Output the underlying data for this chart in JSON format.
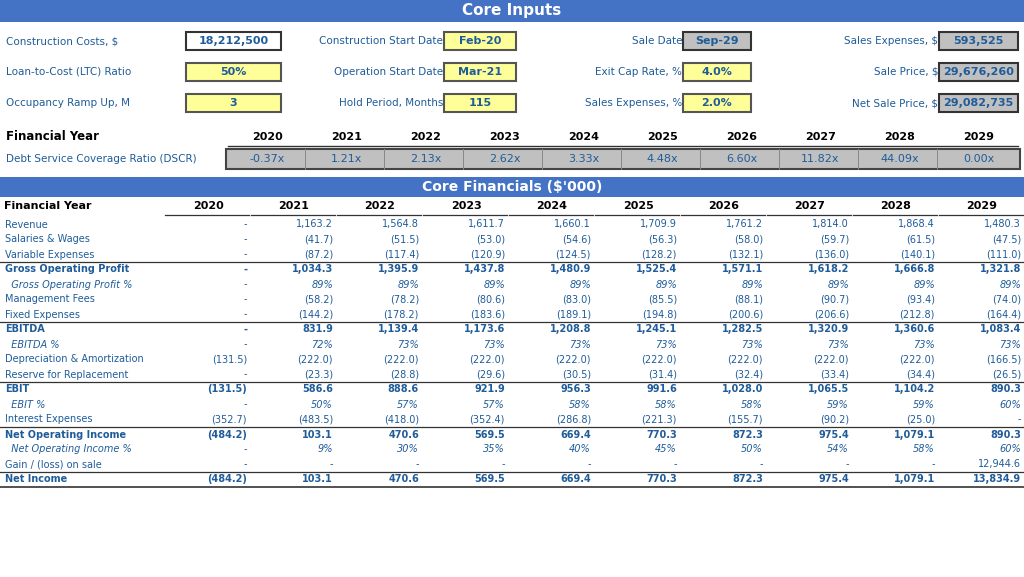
{
  "title_inputs": "Core Inputs",
  "title_financials": "Core Financials ($’000)",
  "header_bg": "#4472C4",
  "header_text": "#FFFFFF",
  "blue_text": "#1F5C99",
  "black_text": "#000000",
  "body_bg": "#FFFFFF",
  "light_gray_bg": "#C0C0C0",
  "yellow_bg": "#FFFF99",
  "gray_border": "#555555",
  "fin_years": [
    "2020",
    "2021",
    "2022",
    "2023",
    "2024",
    "2025",
    "2026",
    "2027",
    "2028",
    "2029"
  ],
  "dscr": [
    "-0.37x",
    "1.21x",
    "2.13x",
    "2.62x",
    "3.33x",
    "4.48x",
    "6.60x",
    "11.82x",
    "44.09x",
    "0.00x"
  ],
  "input_rows": [
    [
      {
        "label": "Construction Costs, $",
        "value": "18,212,500",
        "val_bg": "#FFFFFF",
        "val_border": "#333333"
      },
      {
        "label": "Construction Start Date",
        "value": "Feb-20",
        "val_bg": "#FFFF99",
        "val_border": "#555555"
      },
      {
        "label": "Sale Date",
        "value": "Sep-29",
        "val_bg": "#C0C0C0",
        "val_border": "#333333"
      },
      {
        "label": "Sales Expenses, $",
        "value": "593,525",
        "val_bg": "#C0C0C0",
        "val_border": "#333333"
      }
    ],
    [
      {
        "label": "Loan-to-Cost (LTC) Ratio",
        "value": "50%",
        "val_bg": "#FFFF99",
        "val_border": "#555555"
      },
      {
        "label": "Operation Start Date",
        "value": "Mar-21",
        "val_bg": "#FFFF99",
        "val_border": "#555555"
      },
      {
        "label": "Exit Cap Rate, %",
        "value": "4.0%",
        "val_bg": "#FFFF99",
        "val_border": "#555555"
      },
      {
        "label": "Sale Price, $",
        "value": "29,676,260",
        "val_bg": "#C0C0C0",
        "val_border": "#333333"
      }
    ],
    [
      {
        "label": "Occupancy Ramp Up, M",
        "value": "3",
        "val_bg": "#FFFF99",
        "val_border": "#555555"
      },
      {
        "label": "Hold Period, Months",
        "value": "115",
        "val_bg": "#FFFF99",
        "val_border": "#555555"
      },
      {
        "label": "Sales Expenses, %",
        "value": "2.0%",
        "val_bg": "#FFFF99",
        "val_border": "#555555"
      },
      {
        "label": "Net Sale Price, $",
        "value": "29,082,735",
        "val_bg": "#C0C0C0",
        "val_border": "#333333"
      }
    ]
  ],
  "fin_rows": [
    {
      "label": "Revenue",
      "bold": false,
      "italic": false,
      "topline": false,
      "values": [
        "-",
        "1,163.2",
        "1,564.8",
        "1,611.7",
        "1,660.1",
        "1,709.9",
        "1,761.2",
        "1,814.0",
        "1,868.4",
        "1,480.3"
      ]
    },
    {
      "label": "Salaries & Wages",
      "bold": false,
      "italic": false,
      "topline": false,
      "values": [
        "-",
        "(41.7)",
        "(51.5)",
        "(53.0)",
        "(54.6)",
        "(56.3)",
        "(58.0)",
        "(59.7)",
        "(61.5)",
        "(47.5)"
      ]
    },
    {
      "label": "Variable Expenses",
      "bold": false,
      "italic": false,
      "topline": false,
      "values": [
        "-",
        "(87.2)",
        "(117.4)",
        "(120.9)",
        "(124.5)",
        "(128.2)",
        "(132.1)",
        "(136.0)",
        "(140.1)",
        "(111.0)"
      ]
    },
    {
      "label": "Gross Operating Profit",
      "bold": true,
      "italic": false,
      "topline": true,
      "values": [
        "-",
        "1,034.3",
        "1,395.9",
        "1,437.8",
        "1,480.9",
        "1,525.4",
        "1,571.1",
        "1,618.2",
        "1,666.8",
        "1,321.8"
      ]
    },
    {
      "label": "  Gross Operating Profit %",
      "bold": false,
      "italic": true,
      "topline": false,
      "values": [
        "-",
        "89%",
        "89%",
        "89%",
        "89%",
        "89%",
        "89%",
        "89%",
        "89%",
        "89%"
      ]
    },
    {
      "label": "Management Fees",
      "bold": false,
      "italic": false,
      "topline": false,
      "values": [
        "-",
        "(58.2)",
        "(78.2)",
        "(80.6)",
        "(83.0)",
        "(85.5)",
        "(88.1)",
        "(90.7)",
        "(93.4)",
        "(74.0)"
      ]
    },
    {
      "label": "Fixed Expenses",
      "bold": false,
      "italic": false,
      "topline": false,
      "values": [
        "-",
        "(144.2)",
        "(178.2)",
        "(183.6)",
        "(189.1)",
        "(194.8)",
        "(200.6)",
        "(206.6)",
        "(212.8)",
        "(164.4)"
      ]
    },
    {
      "label": "EBITDA",
      "bold": true,
      "italic": false,
      "topline": true,
      "values": [
        "-",
        "831.9",
        "1,139.4",
        "1,173.6",
        "1,208.8",
        "1,245.1",
        "1,282.5",
        "1,320.9",
        "1,360.6",
        "1,083.4"
      ]
    },
    {
      "label": "  EBITDA %",
      "bold": false,
      "italic": true,
      "topline": false,
      "values": [
        "-",
        "72%",
        "73%",
        "73%",
        "73%",
        "73%",
        "73%",
        "73%",
        "73%",
        "73%"
      ]
    },
    {
      "label": "Depreciation & Amortization",
      "bold": false,
      "italic": false,
      "topline": false,
      "values": [
        "(131.5)",
        "(222.0)",
        "(222.0)",
        "(222.0)",
        "(222.0)",
        "(222.0)",
        "(222.0)",
        "(222.0)",
        "(222.0)",
        "(166.5)"
      ]
    },
    {
      "label": "Reserve for Replacement",
      "bold": false,
      "italic": false,
      "topline": false,
      "values": [
        "-",
        "(23.3)",
        "(28.8)",
        "(29.6)",
        "(30.5)",
        "(31.4)",
        "(32.4)",
        "(33.4)",
        "(34.4)",
        "(26.5)"
      ]
    },
    {
      "label": "EBIT",
      "bold": true,
      "italic": false,
      "topline": true,
      "values": [
        "(131.5)",
        "586.6",
        "888.6",
        "921.9",
        "956.3",
        "991.6",
        "1,028.0",
        "1,065.5",
        "1,104.2",
        "890.3"
      ]
    },
    {
      "label": "  EBIT %",
      "bold": false,
      "italic": true,
      "topline": false,
      "values": [
        "-",
        "50%",
        "57%",
        "57%",
        "58%",
        "58%",
        "58%",
        "59%",
        "59%",
        "60%"
      ]
    },
    {
      "label": "Interest Expenses",
      "bold": false,
      "italic": false,
      "topline": false,
      "values": [
        "(352.7)",
        "(483.5)",
        "(418.0)",
        "(352.4)",
        "(286.8)",
        "(221.3)",
        "(155.7)",
        "(90.2)",
        "(25.0)",
        "-"
      ]
    },
    {
      "label": "Net Operating Income",
      "bold": true,
      "italic": false,
      "topline": true,
      "values": [
        "(484.2)",
        "103.1",
        "470.6",
        "569.5",
        "669.4",
        "770.3",
        "872.3",
        "975.4",
        "1,079.1",
        "890.3"
      ]
    },
    {
      "label": "  Net Operating Income %",
      "bold": false,
      "italic": true,
      "topline": false,
      "values": [
        "-",
        "9%",
        "30%",
        "35%",
        "40%",
        "45%",
        "50%",
        "54%",
        "58%",
        "60%"
      ]
    },
    {
      "label": "Gain / (loss) on sale",
      "bold": false,
      "italic": false,
      "topline": false,
      "values": [
        "-",
        "-",
        "-",
        "-",
        "-",
        "-",
        "-",
        "-",
        "-",
        "12,944.6"
      ]
    },
    {
      "label": "Net Income",
      "bold": true,
      "italic": false,
      "topline": true,
      "values": [
        "(484.2)",
        "103.1",
        "470.6",
        "569.5",
        "669.4",
        "770.3",
        "872.3",
        "975.4",
        "1,079.1",
        "13,834.9"
      ]
    }
  ]
}
